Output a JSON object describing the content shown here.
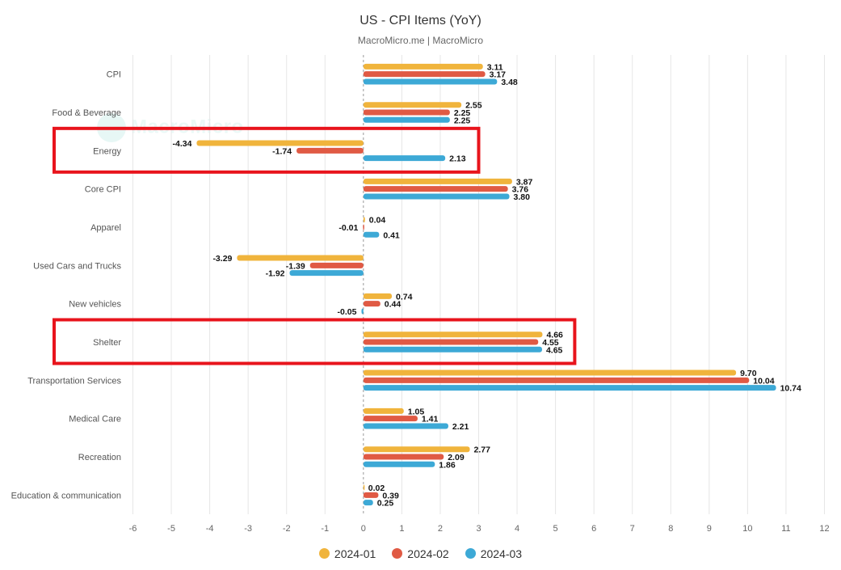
{
  "chart_data": {
    "type": "bar",
    "orientation": "horizontal",
    "title": "US - CPI Items (YoY)",
    "subtitle": "MacroMicro.me | MacroMicro",
    "watermark": "MacroMicro",
    "categories": [
      "CPI",
      "Food & Beverage",
      "Energy",
      "Core CPI",
      "Apparel",
      "Used Cars and Trucks",
      "New vehicles",
      "Shelter",
      "Transportation Services",
      "Medical Care",
      "Recreation",
      "Education & communication"
    ],
    "series": [
      {
        "name": "2024-01",
        "color": "#f0b43c",
        "values": [
          3.11,
          2.55,
          -4.34,
          3.87,
          0.04,
          -3.29,
          0.74,
          4.66,
          9.7,
          1.05,
          2.77,
          0.02
        ]
      },
      {
        "name": "2024-02",
        "color": "#e05a44",
        "values": [
          3.17,
          2.25,
          -1.74,
          3.76,
          -0.01,
          -1.39,
          0.44,
          4.55,
          10.04,
          1.41,
          2.09,
          0.39
        ]
      },
      {
        "name": "2024-03",
        "color": "#3da9d6",
        "values": [
          3.48,
          2.25,
          2.13,
          3.8,
          0.41,
          -1.92,
          -0.05,
          4.65,
          10.74,
          2.21,
          1.86,
          0.25
        ]
      }
    ],
    "xlim": [
      -6,
      12
    ],
    "xticks": [
      "-6",
      "-5",
      "-4",
      "-3",
      "-2",
      "-1",
      "0",
      "1",
      "2",
      "3",
      "4",
      "5",
      "6",
      "7",
      "8",
      "9",
      "10",
      "11",
      "12"
    ],
    "grid": true,
    "legend_position": "bottom-center",
    "highlighted_categories": [
      "Energy",
      "Shelter"
    ],
    "highlight_color": "#e8141c"
  }
}
